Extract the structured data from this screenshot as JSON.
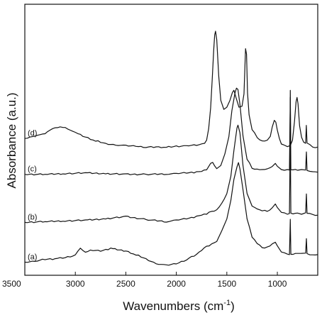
{
  "chart_data": {
    "type": "line",
    "xlabel": "Wavenumbers (cm",
    "xlabel_sup": "-1",
    "xlabel_end": ")",
    "ylabel": "Absorbance (a.u.)",
    "xlim": [
      3500,
      600
    ],
    "x_reversed": true,
    "y_ticks_shown": false,
    "xticks": [
      3500,
      3000,
      2500,
      2000,
      1500,
      1000
    ],
    "xtick_labels": [
      "3500",
      "3000",
      "2500",
      "2000",
      "1500",
      "1000"
    ],
    "series": [
      {
        "name": "(a)",
        "points": [
          [
            3500,
            0.45
          ],
          [
            3400,
            0.55
          ],
          [
            3300,
            0.85
          ],
          [
            3200,
            0.9
          ],
          [
            3100,
            1.1
          ],
          [
            3000,
            1.4
          ],
          [
            2950,
            2.4
          ],
          [
            2900,
            1.9
          ],
          [
            2850,
            2.1
          ],
          [
            2750,
            2.0
          ],
          [
            2650,
            2.35
          ],
          [
            2500,
            2.0
          ],
          [
            2400,
            1.5
          ],
          [
            2300,
            0.9
          ],
          [
            2200,
            0.25
          ],
          [
            2100,
            0.0
          ],
          [
            2000,
            0.2
          ],
          [
            1900,
            0.8
          ],
          [
            1800,
            1.5
          ],
          [
            1750,
            2.1
          ],
          [
            1700,
            2.6
          ],
          [
            1650,
            3.0
          ],
          [
            1600,
            3.4
          ],
          [
            1550,
            4.8
          ],
          [
            1500,
            6.5
          ],
          [
            1460,
            9.0
          ],
          [
            1430,
            12.0
          ],
          [
            1400,
            13.8
          ],
          [
            1385,
            14.3
          ],
          [
            1370,
            13.5
          ],
          [
            1340,
            10.5
          ],
          [
            1300,
            6.5
          ],
          [
            1250,
            4.0
          ],
          [
            1200,
            3.0
          ],
          [
            1150,
            2.5
          ],
          [
            1100,
            2.5
          ],
          [
            1050,
            3.0
          ],
          [
            1020,
            3.3
          ],
          [
            1000,
            2.7
          ],
          [
            960,
            1.9
          ],
          [
            900,
            1.5
          ],
          [
            880,
            1.5
          ],
          [
            872,
            6.5
          ],
          [
            866,
            1.5
          ],
          [
            800,
            1.7
          ],
          [
            760,
            1.6
          ],
          [
            720,
            1.7
          ],
          [
            712,
            3.8
          ],
          [
            706,
            1.6
          ],
          [
            650,
            1.5
          ],
          [
            600,
            1.5
          ]
        ]
      },
      {
        "name": "(b)",
        "points": [
          [
            3500,
            6.0
          ],
          [
            3300,
            6.1
          ],
          [
            3100,
            6.2
          ],
          [
            2900,
            6.3
          ],
          [
            2700,
            6.5
          ],
          [
            2500,
            6.8
          ],
          [
            2300,
            6.4
          ],
          [
            2100,
            6.1
          ],
          [
            2000,
            6.3
          ],
          [
            1900,
            6.5
          ],
          [
            1800,
            6.8
          ],
          [
            1750,
            7.0
          ],
          [
            1700,
            7.2
          ],
          [
            1650,
            7.5
          ],
          [
            1600,
            7.8
          ],
          [
            1550,
            8.6
          ],
          [
            1500,
            10.0
          ],
          [
            1460,
            12.5
          ],
          [
            1430,
            16.0
          ],
          [
            1400,
            19.2
          ],
          [
            1390,
            19.5
          ],
          [
            1370,
            18.5
          ],
          [
            1340,
            14.0
          ],
          [
            1300,
            10.0
          ],
          [
            1250,
            8.3
          ],
          [
            1200,
            7.8
          ],
          [
            1150,
            7.6
          ],
          [
            1100,
            7.6
          ],
          [
            1050,
            8.0
          ],
          [
            1020,
            8.6
          ],
          [
            1000,
            8.0
          ],
          [
            960,
            7.4
          ],
          [
            900,
            7.2
          ],
          [
            880,
            7.2
          ],
          [
            872,
            18.3
          ],
          [
            866,
            7.2
          ],
          [
            800,
            7.3
          ],
          [
            760,
            7.2
          ],
          [
            720,
            7.3
          ],
          [
            712,
            10.0
          ],
          [
            706,
            7.2
          ],
          [
            650,
            7.1
          ],
          [
            600,
            7.0
          ]
        ]
      },
      {
        "name": "(c)",
        "points": [
          [
            3500,
            12.7
          ],
          [
            3300,
            12.7
          ],
          [
            3100,
            12.8
          ],
          [
            2900,
            12.9
          ],
          [
            2700,
            12.8
          ],
          [
            2500,
            12.7
          ],
          [
            2300,
            12.7
          ],
          [
            2100,
            12.75
          ],
          [
            2000,
            12.8
          ],
          [
            1900,
            12.9
          ],
          [
            1800,
            13.0
          ],
          [
            1750,
            13.1
          ],
          [
            1700,
            13.4
          ],
          [
            1660,
            14.2
          ],
          [
            1640,
            14.4
          ],
          [
            1620,
            13.8
          ],
          [
            1600,
            13.5
          ],
          [
            1560,
            14.0
          ],
          [
            1520,
            15.5
          ],
          [
            1480,
            18.0
          ],
          [
            1450,
            21.5
          ],
          [
            1420,
            24.0
          ],
          [
            1405,
            24.8
          ],
          [
            1390,
            24.5
          ],
          [
            1370,
            22.5
          ],
          [
            1340,
            18.0
          ],
          [
            1300,
            14.8
          ],
          [
            1250,
            13.6
          ],
          [
            1200,
            13.4
          ],
          [
            1150,
            13.4
          ],
          [
            1100,
            13.4
          ],
          [
            1050,
            13.8
          ],
          [
            1020,
            14.3
          ],
          [
            1000,
            13.8
          ],
          [
            960,
            13.4
          ],
          [
            900,
            13.3
          ],
          [
            880,
            13.3
          ],
          [
            872,
            23.5
          ],
          [
            866,
            13.3
          ],
          [
            800,
            13.3
          ],
          [
            760,
            13.3
          ],
          [
            720,
            13.3
          ],
          [
            712,
            15.9
          ],
          [
            706,
            13.2
          ],
          [
            650,
            13.1
          ],
          [
            600,
            13.0
          ]
        ]
      },
      {
        "name": "(d)",
        "points": [
          [
            3500,
            17.7
          ],
          [
            3450,
            17.9
          ],
          [
            3400,
            18.1
          ],
          [
            3350,
            18.2
          ],
          [
            3300,
            18.4
          ],
          [
            3250,
            18.8
          ],
          [
            3200,
            19.2
          ],
          [
            3150,
            19.4
          ],
          [
            3100,
            19.2
          ],
          [
            3050,
            18.9
          ],
          [
            3000,
            18.5
          ],
          [
            2900,
            17.9
          ],
          [
            2800,
            17.4
          ],
          [
            2700,
            17.0
          ],
          [
            2600,
            16.8
          ],
          [
            2500,
            16.7
          ],
          [
            2400,
            16.6
          ],
          [
            2300,
            16.5
          ],
          [
            2200,
            16.5
          ],
          [
            2100,
            16.5
          ],
          [
            2000,
            16.6
          ],
          [
            1900,
            16.7
          ],
          [
            1800,
            16.8
          ],
          [
            1720,
            17.0
          ],
          [
            1700,
            17.5
          ],
          [
            1680,
            19.0
          ],
          [
            1660,
            22.0
          ],
          [
            1645,
            26.0
          ],
          [
            1630,
            30.0
          ],
          [
            1620,
            32.2
          ],
          [
            1612,
            32.6
          ],
          [
            1600,
            31.5
          ],
          [
            1580,
            26.5
          ],
          [
            1560,
            23.0
          ],
          [
            1530,
            21.8
          ],
          [
            1500,
            22.0
          ],
          [
            1470,
            23.0
          ],
          [
            1445,
            24.2
          ],
          [
            1430,
            24.4
          ],
          [
            1410,
            23.5
          ],
          [
            1380,
            22.0
          ],
          [
            1350,
            22.2
          ],
          [
            1330,
            24.0
          ],
          [
            1315,
            30.2
          ],
          [
            1305,
            29.5
          ],
          [
            1295,
            24.0
          ],
          [
            1280,
            21.0
          ],
          [
            1250,
            19.0
          ],
          [
            1200,
            17.8
          ],
          [
            1150,
            17.4
          ],
          [
            1100,
            17.4
          ],
          [
            1070,
            18.0
          ],
          [
            1050,
            19.4
          ],
          [
            1030,
            20.2
          ],
          [
            1015,
            20.0
          ],
          [
            1000,
            18.8
          ],
          [
            980,
            17.7
          ],
          [
            960,
            17.0
          ],
          [
            940,
            16.8
          ],
          [
            900,
            16.6
          ],
          [
            880,
            16.6
          ],
          [
            875,
            16.8
          ],
          [
            872,
            24.5
          ],
          [
            868,
            16.8
          ],
          [
            850,
            17.5
          ],
          [
            830,
            20.0
          ],
          [
            815,
            22.8
          ],
          [
            805,
            23.5
          ],
          [
            795,
            22.5
          ],
          [
            780,
            19.5
          ],
          [
            760,
            17.8
          ],
          [
            740,
            17.2
          ],
          [
            720,
            17.1
          ],
          [
            713,
            19.5
          ],
          [
            706,
            17.1
          ],
          [
            680,
            16.8
          ],
          [
            650,
            16.5
          ],
          [
            600,
            16.5
          ]
        ]
      }
    ]
  }
}
